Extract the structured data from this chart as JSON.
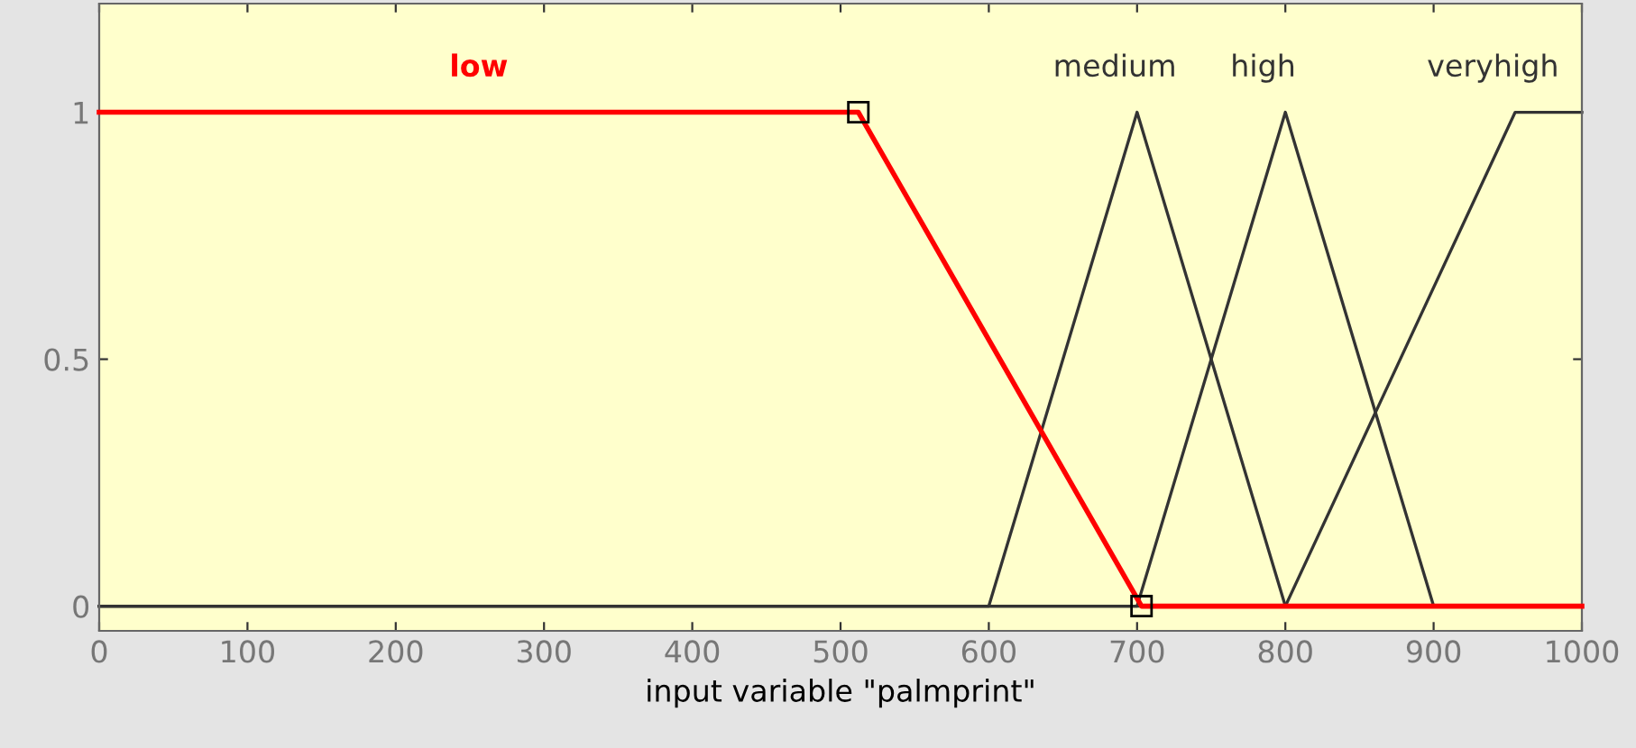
{
  "chart_data": {
    "type": "line",
    "xlabel": "input variable \"palmprint\"",
    "series": [
      {
        "name": "low",
        "color": "#ff0000",
        "x": [
          0,
          512,
          703,
          1000
        ],
        "values": [
          1,
          1,
          0,
          0
        ],
        "marker": "square"
      },
      {
        "name": "medium",
        "color": "#333333",
        "x": [
          0,
          600,
          700,
          800,
          1000
        ],
        "values": [
          0,
          0,
          1,
          0,
          0
        ]
      },
      {
        "name": "high",
        "color": "#333333",
        "x": [
          0,
          700,
          800,
          900,
          1000
        ],
        "values": [
          0,
          0,
          1,
          0,
          0
        ]
      },
      {
        "name": "veryhigh",
        "color": "#333333",
        "x": [
          0,
          800,
          955,
          1000
        ],
        "values": [
          0,
          0,
          1,
          1
        ]
      }
    ],
    "xlim": [
      0,
      1000
    ],
    "ylim": [
      -0.05,
      1.22
    ],
    "xticks": [
      0,
      100,
      200,
      300,
      400,
      500,
      600,
      700,
      800,
      900,
      1000
    ],
    "yticks": [
      0,
      0.5,
      1
    ],
    "grid": false,
    "legend": false,
    "line_style": "solid"
  }
}
